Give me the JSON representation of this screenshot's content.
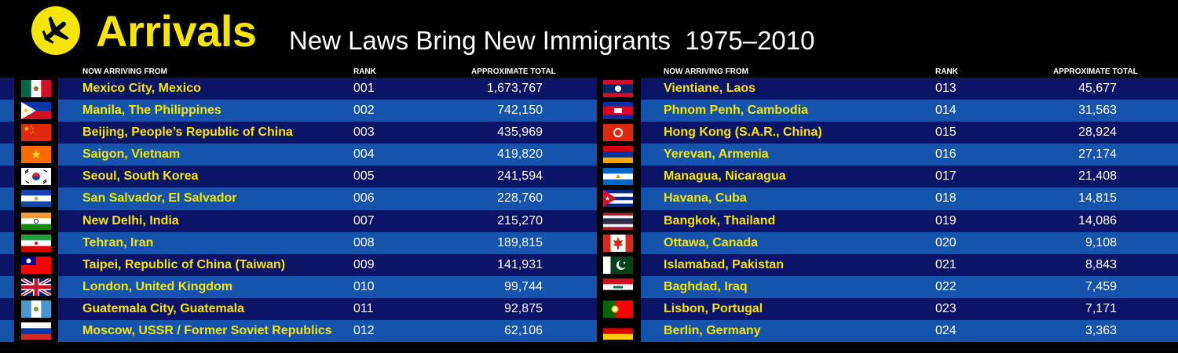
{
  "header": {
    "title": "Arrivals",
    "subtitle": "New Laws Bring New Immigrants  1975–2010",
    "icon": "airplane-icon",
    "accent_color": "#f5e500"
  },
  "columns": {
    "origin": "NOW ARRIVING FROM",
    "rank": "RANK",
    "total": "APPROXIMATE TOTAL"
  },
  "colors": {
    "row_dark": "#0c1468",
    "row_light": "#1454ac",
    "city_text": "#f5e500"
  },
  "left_rows": [
    {
      "flag": "mexico",
      "city": "Mexico City, Mexico",
      "rank": "001",
      "total": "1,673,767"
    },
    {
      "flag": "philippines",
      "city": "Manila, The Philippines",
      "rank": "002",
      "total": "742,150"
    },
    {
      "flag": "china",
      "city": "Beijing, People’s Republic of China",
      "rank": "003",
      "total": "435,969"
    },
    {
      "flag": "south-vietnam",
      "city": "Saigon, Vietnam",
      "rank": "004",
      "total": "419,820"
    },
    {
      "flag": "south-korea",
      "city": "Seoul, South Korea",
      "rank": "005",
      "total": "241,594"
    },
    {
      "flag": "el-salvador",
      "city": "San Salvador, El Salvador",
      "rank": "006",
      "total": "228,760"
    },
    {
      "flag": "india",
      "city": "New Delhi, India",
      "rank": "007",
      "total": "215,270"
    },
    {
      "flag": "iran",
      "city": "Tehran, Iran",
      "rank": "008",
      "total": "189,815"
    },
    {
      "flag": "taiwan",
      "city": "Taipei, Republic of China (Taiwan)",
      "rank": "009",
      "total": "141,931"
    },
    {
      "flag": "united-kingdom",
      "city": "London, United Kingdom",
      "rank": "010",
      "total": "99,744"
    },
    {
      "flag": "guatemala",
      "city": "Guatemala City, Guatemala",
      "rank": "011",
      "total": "92,875"
    },
    {
      "flag": "russia",
      "city": "Moscow, USSR / Former Soviet Republics",
      "rank": "012",
      "total": "62,106"
    }
  ],
  "right_rows": [
    {
      "flag": "laos",
      "city": "Vientiane, Laos",
      "rank": "013",
      "total": "45,677"
    },
    {
      "flag": "cambodia",
      "city": "Phnom Penh, Cambodia",
      "rank": "014",
      "total": "31,563"
    },
    {
      "flag": "hong-kong",
      "city": "Hong Kong (S.A.R., China)",
      "rank": "015",
      "total": "28,924"
    },
    {
      "flag": "armenia",
      "city": "Yerevan, Armenia",
      "rank": "016",
      "total": "27,174"
    },
    {
      "flag": "nicaragua",
      "city": "Managua, Nicaragua",
      "rank": "017",
      "total": "21,408"
    },
    {
      "flag": "cuba",
      "city": "Havana, Cuba",
      "rank": "018",
      "total": "14,815"
    },
    {
      "flag": "thailand",
      "city": "Bangkok, Thailand",
      "rank": "019",
      "total": "14,086"
    },
    {
      "flag": "canada",
      "city": "Ottawa, Canada",
      "rank": "020",
      "total": "9,108"
    },
    {
      "flag": "pakistan",
      "city": "Islamabad, Pakistan",
      "rank": "021",
      "total": "8,843"
    },
    {
      "flag": "iraq",
      "city": "Baghdad, Iraq",
      "rank": "022",
      "total": "7,459"
    },
    {
      "flag": "portugal",
      "city": "Lisbon, Portugal",
      "rank": "023",
      "total": "7,171"
    },
    {
      "flag": "germany",
      "city": "Berlin, Germany",
      "rank": "024",
      "total": "3,363"
    }
  ]
}
